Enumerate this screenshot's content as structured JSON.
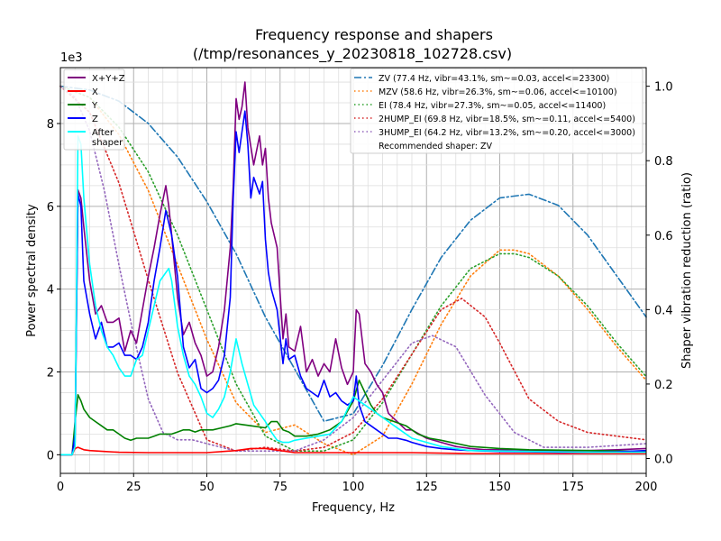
{
  "chart_data": {
    "type": "line",
    "title": "Frequency response and shapers",
    "subtitle": "(/tmp/resonances_y_20230818_102728.csv)",
    "xlabel": "Frequency, Hz",
    "ylabel": "Power spectral density",
    "ylabel_right": "Shaper vibration reduction (ratio)",
    "y_multiplier_label": "1e3",
    "xlim": [
      0,
      200
    ],
    "ylim": [
      -0.45,
      9.35
    ],
    "ylim_right": [
      -0.04,
      1.05
    ],
    "x_ticks": [
      0,
      25,
      50,
      75,
      100,
      125,
      150,
      175,
      200
    ],
    "y_ticks": [
      0,
      2,
      4,
      6,
      8
    ],
    "y_ticks_right": [
      0.0,
      0.2,
      0.4,
      0.6,
      0.8,
      1.0
    ],
    "grid": true,
    "psd_legend_position": "top-left",
    "shaper_legend_position": "top-right",
    "psd_series": [
      {
        "name": "X+Y+Z",
        "color": "#800080",
        "x": [
          0,
          4,
          5,
          6,
          7,
          8,
          10,
          12,
          14,
          16,
          18,
          20,
          22,
          24,
          26,
          28,
          30,
          32,
          34,
          36,
          37,
          38,
          40,
          42,
          44,
          46,
          48,
          50,
          52,
          54,
          56,
          58,
          59,
          60,
          61,
          62,
          63,
          64,
          66,
          68,
          69,
          70,
          71,
          72,
          74,
          76,
          77,
          78,
          80,
          82,
          84,
          86,
          88,
          90,
          92,
          94,
          96,
          98,
          100,
          101,
          102,
          104,
          106,
          108,
          110,
          112,
          115,
          118,
          120,
          125,
          130,
          135,
          140,
          145,
          150,
          155,
          160,
          170,
          180,
          190,
          200
        ],
        "y": [
          0,
          0,
          0.3,
          6.4,
          6.2,
          5.5,
          4.2,
          3.4,
          3.6,
          3.2,
          3.2,
          3.3,
          2.5,
          3.0,
          2.7,
          3.5,
          4.3,
          5.0,
          5.8,
          6.5,
          6.0,
          5.3,
          3.8,
          2.9,
          3.2,
          2.7,
          2.4,
          1.9,
          2.0,
          2.6,
          3.5,
          5.0,
          6.5,
          8.6,
          8.1,
          8.4,
          9.0,
          7.9,
          7.0,
          7.7,
          7.0,
          7.4,
          6.2,
          5.6,
          5.0,
          2.8,
          3.4,
          2.6,
          2.5,
          3.1,
          2.0,
          2.3,
          1.9,
          2.2,
          2.0,
          2.8,
          2.1,
          1.7,
          2.0,
          3.5,
          3.4,
          2.2,
          2.0,
          1.7,
          1.5,
          1.0,
          0.8,
          0.6,
          0.6,
          0.4,
          0.3,
          0.2,
          0.15,
          0.12,
          0.12,
          0.12,
          0.1,
          0.1,
          0.1,
          0.12,
          0.15
        ]
      },
      {
        "name": "X",
        "color": "#ff0000",
        "x": [
          0,
          4,
          5,
          6,
          8,
          10,
          15,
          20,
          30,
          40,
          50,
          60,
          65,
          70,
          75,
          80,
          90,
          100,
          110,
          120,
          140,
          160,
          180,
          200
        ],
        "y": [
          0,
          0,
          0.15,
          0.18,
          0.12,
          0.1,
          0.08,
          0.06,
          0.05,
          0.05,
          0.05,
          0.1,
          0.15,
          0.15,
          0.1,
          0.05,
          0.05,
          0.05,
          0.05,
          0.05,
          0.03,
          0.03,
          0.03,
          0.03
        ]
      },
      {
        "name": "Y",
        "color": "#008000",
        "x": [
          0,
          4,
          5,
          6,
          7,
          8,
          10,
          12,
          14,
          16,
          18,
          20,
          22,
          24,
          26,
          28,
          30,
          32,
          34,
          36,
          38,
          40,
          42,
          44,
          46,
          48,
          50,
          52,
          55,
          58,
          60,
          65,
          70,
          72,
          74,
          76,
          78,
          80,
          84,
          88,
          92,
          96,
          100,
          102,
          104,
          106,
          108,
          110,
          114,
          118,
          122,
          126,
          130,
          140,
          150,
          160,
          180,
          200
        ],
        "y": [
          0,
          0,
          0.8,
          1.45,
          1.3,
          1.1,
          0.9,
          0.8,
          0.7,
          0.6,
          0.6,
          0.5,
          0.4,
          0.35,
          0.4,
          0.4,
          0.4,
          0.45,
          0.5,
          0.5,
          0.5,
          0.55,
          0.6,
          0.6,
          0.55,
          0.6,
          0.6,
          0.6,
          0.65,
          0.7,
          0.75,
          0.7,
          0.65,
          0.8,
          0.8,
          0.6,
          0.55,
          0.45,
          0.45,
          0.5,
          0.6,
          0.8,
          1.3,
          1.8,
          1.5,
          1.2,
          1.0,
          0.9,
          0.8,
          0.7,
          0.5,
          0.4,
          0.35,
          0.2,
          0.15,
          0.12,
          0.1,
          0.08
        ]
      },
      {
        "name": "Z",
        "color": "#0000ff",
        "x": [
          0,
          4,
          5,
          6,
          7,
          8,
          10,
          12,
          14,
          16,
          18,
          20,
          22,
          24,
          26,
          28,
          30,
          32,
          34,
          36,
          38,
          40,
          42,
          44,
          46,
          48,
          50,
          52,
          54,
          56,
          58,
          59,
          60,
          61,
          62,
          63,
          64,
          65,
          66,
          68,
          69,
          70,
          71,
          72,
          74,
          76,
          77,
          78,
          80,
          82,
          84,
          86,
          88,
          90,
          92,
          94,
          96,
          98,
          100,
          101,
          102,
          104,
          106,
          108,
          110,
          112,
          115,
          118,
          120,
          125,
          130,
          135,
          140,
          150,
          160,
          170,
          180,
          190,
          200
        ],
        "y": [
          0,
          0,
          0.5,
          6.3,
          6.0,
          4.2,
          3.4,
          2.8,
          3.2,
          2.6,
          2.6,
          2.7,
          2.4,
          2.4,
          2.3,
          2.6,
          3.2,
          4.2,
          5.0,
          5.9,
          5.3,
          4.3,
          2.6,
          2.1,
          2.3,
          1.6,
          1.5,
          1.6,
          1.8,
          2.4,
          3.8,
          6.2,
          7.8,
          7.3,
          7.8,
          8.3,
          7.5,
          6.2,
          6.7,
          6.3,
          6.6,
          5.2,
          4.4,
          4.0,
          3.5,
          2.2,
          2.8,
          2.3,
          2.4,
          1.9,
          1.6,
          1.5,
          1.4,
          1.8,
          1.4,
          1.5,
          1.3,
          1.2,
          1.3,
          1.9,
          1.2,
          0.8,
          0.7,
          0.6,
          0.5,
          0.4,
          0.4,
          0.35,
          0.3,
          0.2,
          0.15,
          0.12,
          0.1,
          0.08,
          0.07,
          0.06,
          0.06,
          0.07,
          0.1
        ]
      },
      {
        "name": "After\nshaper",
        "color": "#00ffff",
        "x": [
          0,
          4,
          5,
          6,
          7,
          8,
          10,
          12,
          14,
          16,
          18,
          20,
          22,
          24,
          26,
          28,
          30,
          32,
          34,
          36,
          37,
          38,
          40,
          42,
          44,
          46,
          48,
          50,
          52,
          54,
          56,
          58,
          60,
          62,
          64,
          66,
          68,
          70,
          72,
          74,
          76,
          78,
          80,
          84,
          88,
          92,
          96,
          100,
          104,
          108,
          112,
          116,
          120,
          125,
          130,
          140,
          160,
          180,
          200
        ],
        "y": [
          0,
          0,
          0.2,
          7.7,
          7.5,
          6.2,
          4.6,
          3.6,
          3.0,
          2.6,
          2.4,
          2.1,
          1.9,
          1.9,
          2.3,
          2.4,
          3.0,
          3.6,
          4.2,
          4.4,
          4.5,
          4.2,
          3.1,
          2.4,
          1.9,
          1.7,
          1.4,
          1.0,
          0.9,
          1.1,
          1.4,
          2.0,
          2.8,
          2.2,
          1.7,
          1.2,
          1.0,
          0.8,
          0.55,
          0.35,
          0.3,
          0.3,
          0.35,
          0.4,
          0.45,
          0.5,
          0.8,
          1.4,
          1.2,
          1.0,
          0.8,
          0.6,
          0.4,
          0.3,
          0.2,
          0.1,
          0.08,
          0.06,
          0.06
        ]
      }
    ],
    "shaper_series": [
      {
        "name": "ZV (77.4 Hz, vibr=43.1%, sm~=0.03, accel<=23300)",
        "color": "#1f77b4",
        "dash": "dashdot",
        "x": [
          0,
          10,
          20,
          30,
          40,
          50,
          60,
          70,
          80,
          90,
          100,
          110,
          120,
          130,
          140,
          150,
          160,
          170,
          180,
          190,
          200
        ],
        "y": [
          1.0,
          0.99,
          0.96,
          0.9,
          0.81,
          0.69,
          0.55,
          0.38,
          0.24,
          0.1,
          0.12,
          0.25,
          0.4,
          0.54,
          0.64,
          0.7,
          0.71,
          0.68,
          0.6,
          0.49,
          0.38
        ]
      },
      {
        "name": "MZV (58.6 Hz, vibr=26.3%, sm~=0.06, accel<=10100)",
        "color": "#ff7f0e",
        "dash": "dotted",
        "x": [
          0,
          10,
          20,
          30,
          40,
          50,
          60,
          70,
          80,
          90,
          100,
          110,
          120,
          130,
          140,
          150,
          155,
          160,
          170,
          180,
          190,
          200
        ],
        "y": [
          1.0,
          0.97,
          0.87,
          0.72,
          0.52,
          0.32,
          0.15,
          0.07,
          0.09,
          0.04,
          0.01,
          0.06,
          0.2,
          0.36,
          0.49,
          0.56,
          0.56,
          0.55,
          0.49,
          0.4,
          0.3,
          0.21
        ]
      },
      {
        "name": "EI (78.4 Hz, vibr=27.3%, sm~=0.05, accel<=11400)",
        "color": "#2ca02c",
        "dash": "dotted",
        "x": [
          0,
          10,
          20,
          30,
          40,
          50,
          60,
          70,
          80,
          90,
          100,
          110,
          120,
          130,
          140,
          150,
          155,
          160,
          170,
          180,
          190,
          200
        ],
        "y": [
          1.0,
          0.97,
          0.89,
          0.77,
          0.6,
          0.4,
          0.2,
          0.06,
          0.02,
          0.02,
          0.05,
          0.15,
          0.28,
          0.41,
          0.51,
          0.55,
          0.55,
          0.54,
          0.49,
          0.41,
          0.31,
          0.22
        ]
      },
      {
        "name": "2HUMP_EI (69.8 Hz, vibr=18.5%, sm~=0.11, accel<=5400)",
        "color": "#d62728",
        "dash": "dotted",
        "x": [
          0,
          10,
          20,
          30,
          40,
          50,
          60,
          70,
          80,
          90,
          100,
          110,
          120,
          130,
          137,
          145,
          150,
          160,
          170,
          180,
          190,
          200
        ],
        "y": [
          1.0,
          0.93,
          0.74,
          0.48,
          0.23,
          0.05,
          0.02,
          0.03,
          0.02,
          0.03,
          0.07,
          0.16,
          0.28,
          0.4,
          0.43,
          0.38,
          0.31,
          0.16,
          0.1,
          0.07,
          0.06,
          0.05
        ]
      },
      {
        "name": "3HUMP_EI (64.2 Hz, vibr=13.2%, sm~=0.20, accel<=3000)",
        "color": "#9467bd",
        "dash": "dotted",
        "x": [
          0,
          5,
          10,
          15,
          20,
          25,
          30,
          35,
          40,
          45,
          50,
          60,
          70,
          80,
          90,
          100,
          110,
          120,
          127,
          135,
          145,
          155,
          165,
          180,
          200
        ],
        "y": [
          1.0,
          0.97,
          0.88,
          0.72,
          0.52,
          0.33,
          0.16,
          0.07,
          0.05,
          0.05,
          0.04,
          0.02,
          0.02,
          0.02,
          0.05,
          0.11,
          0.21,
          0.31,
          0.33,
          0.3,
          0.17,
          0.07,
          0.03,
          0.03,
          0.04
        ]
      }
    ],
    "recommended": "Recommended shaper: ZV"
  }
}
